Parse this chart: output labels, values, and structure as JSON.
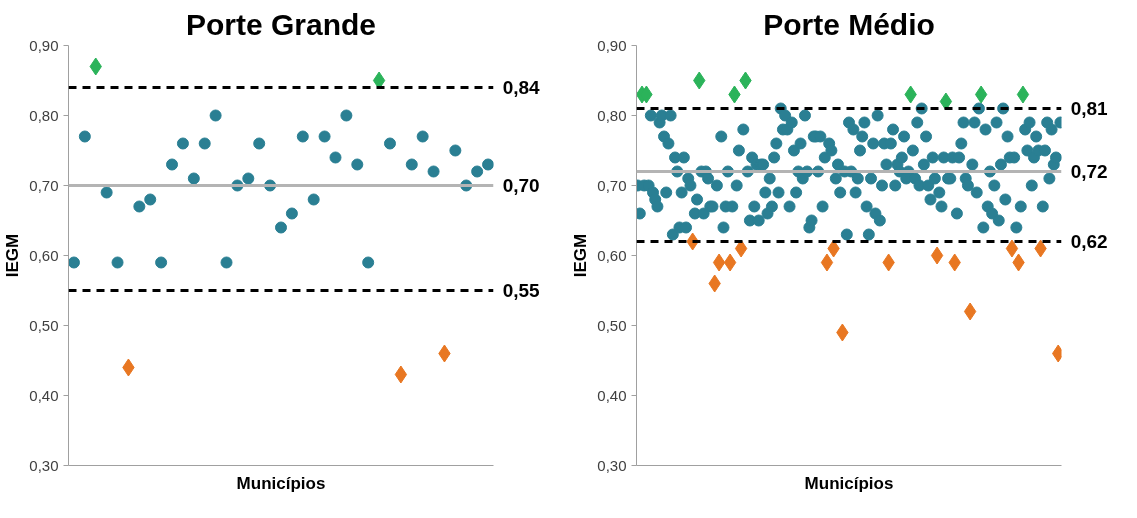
{
  "chart_data": [
    {
      "type": "scatter",
      "title": "Porte Grande",
      "xlabel": "Municípios",
      "ylabel": "IEGM",
      "grid": false,
      "tick_labels": "y",
      "ylim": [
        0.3,
        0.9
      ],
      "yticks": [
        {
          "value": 0.3,
          "label": "0,30"
        },
        {
          "value": 0.4,
          "label": "0,40"
        },
        {
          "value": 0.5,
          "label": "0,50"
        },
        {
          "value": 0.6,
          "label": "0,60"
        },
        {
          "value": 0.7,
          "label": "0,70"
        },
        {
          "value": 0.8,
          "label": "0,80"
        },
        {
          "value": 0.9,
          "label": "0,90"
        }
      ],
      "categories": [
        null,
        null,
        null,
        null,
        null,
        null,
        null,
        null,
        null,
        null,
        null,
        null,
        null,
        null,
        null,
        null,
        null,
        null,
        null,
        null,
        null,
        null,
        null,
        null,
        null,
        null,
        null,
        null,
        null,
        null,
        null,
        null,
        null,
        null,
        null,
        null,
        null,
        null,
        null
      ],
      "series": [
        {
          "color": "#2a7f93",
          "marker": "circle",
          "values": [
            0.59,
            0.77,
            null,
            0.69,
            0.59,
            null,
            0.67,
            0.68,
            0.59,
            0.73,
            0.76,
            0.71,
            0.76,
            0.8,
            0.59,
            0.7,
            0.71,
            0.76,
            0.7,
            0.64,
            0.66,
            0.77,
            0.68,
            0.77,
            0.74,
            0.8,
            0.73,
            0.59,
            null,
            0.76,
            null,
            0.73,
            0.77,
            0.72,
            null,
            0.75,
            0.7,
            0.72,
            0.73
          ]
        },
        {
          "color": "#2bb35a",
          "marker": "diamond",
          "values": [
            null,
            null,
            0.87,
            null,
            null,
            null,
            null,
            null,
            null,
            null,
            null,
            null,
            null,
            null,
            null,
            null,
            null,
            null,
            null,
            null,
            null,
            null,
            null,
            null,
            null,
            null,
            null,
            null,
            0.85,
            null,
            null,
            null,
            null,
            null,
            null,
            null,
            null,
            null,
            null
          ]
        },
        {
          "color": "#e87722",
          "marker": "diamond",
          "values": [
            null,
            null,
            null,
            null,
            null,
            0.44,
            null,
            null,
            null,
            null,
            null,
            null,
            null,
            null,
            null,
            null,
            null,
            null,
            null,
            null,
            null,
            null,
            null,
            null,
            null,
            null,
            null,
            null,
            null,
            null,
            0.43,
            null,
            null,
            null,
            0.46,
            null,
            null,
            null,
            null
          ]
        }
      ],
      "ref_lines": [
        {
          "axis": "y",
          "value": 0.84,
          "label": "0,84",
          "color": "#000000",
          "line_style": "dashed"
        },
        {
          "axis": "y",
          "value": 0.7,
          "label": "0,70",
          "color": "#b4b4b4",
          "line_style": "solid"
        },
        {
          "axis": "y",
          "value": 0.55,
          "label": "0,55",
          "color": "#000000",
          "line_style": "dashed"
        }
      ]
    },
    {
      "type": "scatter",
      "title": "Porte Médio",
      "xlabel": "Municípios",
      "ylabel": "IEGM",
      "grid": false,
      "tick_labels": "y",
      "ylim": [
        0.3,
        0.9
      ],
      "yticks": [
        {
          "value": 0.3,
          "label": "0,30"
        },
        {
          "value": 0.4,
          "label": "0,40"
        },
        {
          "value": 0.5,
          "label": "0,50"
        },
        {
          "value": 0.6,
          "label": "0,60"
        },
        {
          "value": 0.7,
          "label": "0,70"
        },
        {
          "value": 0.8,
          "label": "0,80"
        },
        {
          "value": 0.9,
          "label": "0,90"
        }
      ],
      "categories": [
        null,
        null,
        null,
        null,
        null,
        null,
        null,
        null,
        null,
        null,
        null,
        null,
        null,
        null,
        null,
        null,
        null,
        null,
        null,
        null,
        null,
        null,
        null,
        null,
        null,
        null,
        null,
        null,
        null,
        null,
        null,
        null,
        null,
        null,
        null,
        null,
        null,
        null,
        null,
        null,
        null,
        null,
        null,
        null,
        null,
        null,
        null,
        null,
        null,
        null,
        null,
        null,
        null,
        null,
        null,
        null,
        null,
        null,
        null,
        null,
        null,
        null,
        null,
        null,
        null,
        null,
        null,
        null,
        null,
        null,
        null,
        null,
        null,
        null,
        null,
        null,
        null,
        null,
        null,
        null,
        null,
        null,
        null,
        null,
        null,
        null,
        null,
        null,
        null,
        null,
        null,
        null,
        null,
        null,
        null,
        null,
        null,
        null,
        null,
        null,
        null,
        null,
        null,
        null,
        null,
        null,
        null,
        null,
        null,
        null,
        null,
        null,
        null,
        null,
        null,
        null,
        null,
        null,
        null,
        null,
        null,
        null,
        null,
        null,
        null,
        null,
        null,
        null,
        null,
        null,
        null,
        null,
        null,
        null,
        null,
        null,
        null,
        null,
        null,
        null,
        null,
        null,
        null,
        null,
        null,
        null,
        null,
        null,
        null,
        null,
        null,
        null,
        null,
        null,
        null,
        null,
        null,
        null,
        null,
        null,
        null,
        null,
        null,
        null,
        null,
        null,
        null,
        null,
        null,
        null,
        null,
        null,
        null,
        null,
        null,
        null,
        null,
        null,
        null,
        null,
        null,
        null,
        null,
        null,
        null,
        null,
        null,
        null,
        null,
        null,
        null,
        null,
        null
      ],
      "series": [
        {
          "color": "#2a7f93",
          "marker": "circle",
          "values": [
            0.7,
            0.66,
            null,
            0.7,
            null,
            0.7,
            0.8,
            0.69,
            0.68,
            0.67,
            0.79,
            0.8,
            0.77,
            0.69,
            0.76,
            0.8,
            0.63,
            0.74,
            0.72,
            0.64,
            0.69,
            0.74,
            0.64,
            0.71,
            0.7,
            null,
            0.66,
            0.68,
            null,
            0.72,
            0.66,
            0.72,
            0.71,
            0.67,
            0.67,
            null,
            0.7,
            null,
            0.77,
            0.64,
            0.67,
            0.72,
            null,
            0.67,
            null,
            0.7,
            0.75,
            null,
            0.78,
            null,
            0.72,
            0.65,
            0.74,
            0.67,
            0.73,
            0.65,
            0.73,
            0.73,
            0.69,
            0.66,
            0.71,
            0.67,
            0.74,
            0.76,
            0.69,
            0.81,
            0.78,
            0.8,
            0.78,
            0.67,
            0.79,
            0.75,
            0.69,
            0.72,
            0.76,
            0.71,
            0.8,
            0.72,
            0.64,
            0.65,
            0.77,
            0.77,
            0.72,
            0.77,
            0.67,
            0.74,
            null,
            0.76,
            0.75,
            null,
            0.71,
            0.73,
            0.69,
            null,
            0.72,
            0.63,
            0.79,
            0.72,
            0.78,
            0.69,
            0.71,
            0.75,
            0.77,
            0.79,
            0.67,
            0.63,
            0.71,
            0.76,
            0.66,
            0.8,
            0.65,
            0.7,
            0.76,
            0.73,
            null,
            0.76,
            0.78,
            0.7,
            0.73,
            0.72,
            0.74,
            0.77,
            0.71,
            0.72,
            null,
            0.75,
            0.71,
            0.79,
            0.7,
            0.81,
            0.73,
            0.77,
            0.7,
            0.68,
            0.74,
            0.71,
            null,
            0.69,
            0.67,
            0.74,
            null,
            0.71,
            0.71,
            0.74,
            null,
            0.66,
            0.74,
            0.76,
            0.79,
            0.71,
            0.7,
            null,
            0.73,
            0.79,
            0.69,
            0.81,
            null,
            0.64,
            0.78,
            0.67,
            0.72,
            0.66,
            0.7,
            0.79,
            0.65,
            0.73,
            0.81,
            0.68,
            0.77,
            0.74,
            null,
            0.74,
            0.64,
            null,
            0.67,
            null,
            0.78,
            0.75,
            0.79,
            0.7,
            0.74,
            0.77,
            0.75,
            null,
            0.67,
            0.75,
            0.79,
            0.71,
            0.78,
            0.73,
            0.74,
            null,
            0.79
          ]
        },
        {
          "color": "#2bb35a",
          "marker": "diamond",
          "values": [
            null,
            null,
            0.83,
            null,
            0.83,
            null,
            null,
            null,
            null,
            null,
            null,
            null,
            null,
            null,
            null,
            null,
            null,
            null,
            null,
            null,
            null,
            null,
            null,
            null,
            null,
            null,
            null,
            null,
            0.85,
            null,
            null,
            null,
            null,
            null,
            null,
            null,
            null,
            null,
            null,
            null,
            null,
            null,
            null,
            null,
            0.83,
            null,
            null,
            null,
            null,
            0.85,
            null,
            null,
            null,
            null,
            null,
            null,
            null,
            null,
            null,
            null,
            null,
            null,
            null,
            null,
            null,
            null,
            null,
            null,
            null,
            null,
            null,
            null,
            null,
            null,
            null,
            null,
            null,
            null,
            null,
            null,
            null,
            null,
            null,
            null,
            null,
            null,
            null,
            null,
            null,
            null,
            null,
            null,
            null,
            null,
            null,
            null,
            null,
            null,
            null,
            null,
            null,
            null,
            null,
            null,
            null,
            null,
            null,
            null,
            null,
            null,
            null,
            null,
            null,
            null,
            null,
            null,
            null,
            null,
            null,
            null,
            null,
            null,
            null,
            null,
            0.83,
            null,
            null,
            null,
            null,
            null,
            null,
            null,
            null,
            null,
            null,
            null,
            null,
            null,
            null,
            null,
            0.82,
            null,
            null,
            null,
            null,
            null,
            null,
            null,
            null,
            null,
            null,
            null,
            null,
            null,
            null,
            null,
            0.83,
            null,
            null,
            null,
            null,
            null,
            null,
            null,
            null,
            null,
            null,
            null,
            null,
            null,
            null,
            null,
            null,
            null,
            null,
            0.83,
            null,
            null,
            null,
            null,
            null,
            null,
            null,
            null,
            null,
            null,
            null,
            null,
            null,
            null,
            null,
            null,
            null
          ]
        },
        {
          "color": "#e87722",
          "marker": "diamond",
          "values": [
            null,
            null,
            null,
            null,
            null,
            null,
            null,
            null,
            null,
            null,
            null,
            null,
            null,
            null,
            null,
            null,
            null,
            null,
            null,
            null,
            null,
            null,
            null,
            null,
            null,
            0.62,
            null,
            null,
            null,
            null,
            null,
            null,
            null,
            null,
            null,
            0.56,
            null,
            0.59,
            null,
            null,
            null,
            null,
            0.59,
            null,
            null,
            null,
            null,
            0.61,
            null,
            null,
            null,
            null,
            null,
            null,
            null,
            null,
            null,
            null,
            null,
            null,
            null,
            null,
            null,
            null,
            null,
            null,
            null,
            null,
            null,
            null,
            null,
            null,
            null,
            null,
            null,
            null,
            null,
            null,
            null,
            null,
            null,
            null,
            null,
            null,
            null,
            null,
            0.59,
            null,
            null,
            0.61,
            null,
            null,
            null,
            0.49,
            null,
            null,
            null,
            null,
            null,
            null,
            null,
            null,
            null,
            null,
            null,
            null,
            null,
            null,
            null,
            null,
            null,
            null,
            null,
            null,
            0.59,
            null,
            null,
            null,
            null,
            null,
            null,
            null,
            null,
            null,
            null,
            null,
            null,
            null,
            null,
            null,
            null,
            null,
            null,
            null,
            null,
            null,
            0.6,
            null,
            null,
            null,
            null,
            null,
            null,
            null,
            0.59,
            null,
            null,
            null,
            null,
            null,
            null,
            0.52,
            null,
            null,
            null,
            null,
            null,
            null,
            null,
            null,
            null,
            null,
            null,
            null,
            null,
            null,
            null,
            null,
            null,
            null,
            0.61,
            null,
            null,
            0.59,
            null,
            null,
            null,
            null,
            null,
            null,
            null,
            null,
            null,
            0.61,
            null,
            null,
            null,
            null,
            null,
            null,
            null,
            0.46,
            null
          ]
        }
      ],
      "ref_lines": [
        {
          "axis": "y",
          "value": 0.81,
          "label": "0,81",
          "color": "#000000",
          "line_style": "dashed"
        },
        {
          "axis": "y",
          "value": 0.72,
          "label": "0,72",
          "color": "#b4b4b4",
          "line_style": "solid"
        },
        {
          "axis": "y",
          "value": 0.62,
          "label": "0,62",
          "color": "#000000",
          "line_style": "dashed"
        }
      ]
    }
  ]
}
